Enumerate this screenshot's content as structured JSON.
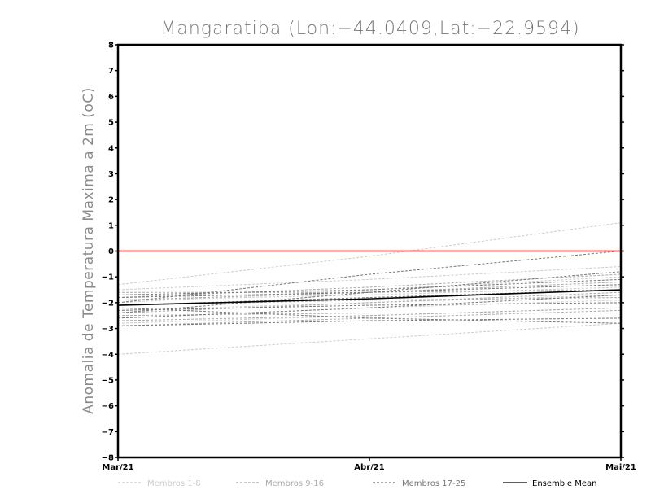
{
  "chart_data": {
    "type": "line",
    "title": "Mangaratiba (Lon:−44.0409,Lat:−22.9594)",
    "ylabel": "Anomalia de Temperatura Maxima a 2m (oC)",
    "xlabel": "",
    "categories": [
      "Mar/21",
      "Abr/21",
      "Mai/21"
    ],
    "yticks": [
      "8",
      "7",
      "6",
      "5",
      "4",
      "3",
      "2",
      "1",
      "0",
      "−1",
      "−2",
      "−3",
      "−4",
      "−5",
      "−6",
      "−7",
      "−8"
    ],
    "ylim": [
      -8,
      8
    ],
    "grid": false,
    "legend_position": "bottom",
    "reference_line": {
      "y": 0,
      "color": "#ee3333"
    },
    "colors": {
      "members_1_8": "#cccccc",
      "members_9_16": "#aaaaaa",
      "members_17_25": "#777777",
      "ensemble_mean": "#000000"
    },
    "legend": [
      {
        "label": "Membros 1-8",
        "color": "#cccccc",
        "dash": "3,2"
      },
      {
        "label": "Membros 9-16",
        "color": "#aaaaaa",
        "dash": "3,2"
      },
      {
        "label": "Membros 17-25",
        "color": "#777777",
        "dash": "3,2"
      },
      {
        "label": "Ensemble Mean",
        "color": "#000000",
        "dash": ""
      }
    ],
    "series": [
      {
        "group": "members_1_8",
        "values": [
          -1.3,
          -0.2,
          1.1
        ]
      },
      {
        "group": "members_1_8",
        "values": [
          -4.0,
          -3.4,
          -2.8
        ]
      },
      {
        "group": "members_1_8",
        "values": [
          -1.5,
          -1.1,
          -0.6
        ]
      },
      {
        "group": "members_1_8",
        "values": [
          -2.0,
          -1.5,
          -1.0
        ]
      },
      {
        "group": "members_1_8",
        "values": [
          -2.3,
          -2.0,
          -1.7
        ]
      },
      {
        "group": "members_1_8",
        "values": [
          -2.6,
          -2.2,
          -1.9
        ]
      },
      {
        "group": "members_1_8",
        "values": [
          -1.9,
          -1.7,
          -1.4
        ]
      },
      {
        "group": "members_1_8",
        "values": [
          -2.8,
          -2.5,
          -2.2
        ]
      },
      {
        "group": "members_9_16",
        "values": [
          -1.8,
          -1.4,
          -0.9
        ]
      },
      {
        "group": "members_9_16",
        "values": [
          -2.4,
          -2.0,
          -1.6
        ]
      },
      {
        "group": "members_9_16",
        "values": [
          -1.6,
          -1.6,
          -1.5
        ]
      },
      {
        "group": "members_9_16",
        "values": [
          -2.9,
          -2.6,
          -2.3
        ]
      },
      {
        "group": "members_9_16",
        "values": [
          -2.1,
          -1.9,
          -1.8
        ]
      },
      {
        "group": "members_9_16",
        "values": [
          -2.5,
          -2.4,
          -2.4
        ]
      },
      {
        "group": "members_9_16",
        "values": [
          -1.9,
          -1.6,
          -1.2
        ]
      },
      {
        "group": "members_9_16",
        "values": [
          -2.7,
          -2.5,
          -2.2
        ]
      },
      {
        "group": "members_17_25",
        "values": [
          -2.0,
          -0.9,
          0.0
        ]
      },
      {
        "group": "members_17_25",
        "values": [
          -2.4,
          -1.6,
          -0.8
        ]
      },
      {
        "group": "members_17_25",
        "values": [
          -2.2,
          -2.6,
          -2.8
        ]
      },
      {
        "group": "members_17_25",
        "values": [
          -1.8,
          -1.6,
          -1.3
        ]
      },
      {
        "group": "members_17_25",
        "values": [
          -2.6,
          -2.2,
          -1.7
        ]
      },
      {
        "group": "members_17_25",
        "values": [
          -2.1,
          -1.8,
          -1.5
        ]
      },
      {
        "group": "members_17_25",
        "values": [
          -2.9,
          -2.7,
          -2.6
        ]
      },
      {
        "group": "members_17_25",
        "values": [
          -1.7,
          -1.5,
          -1.1
        ]
      },
      {
        "group": "members_17_25",
        "values": [
          -2.3,
          -2.1,
          -2.0
        ]
      },
      {
        "group": "ensemble_mean",
        "name": "Ensemble Mean",
        "values": [
          -2.1,
          -1.85,
          -1.5
        ]
      }
    ]
  }
}
